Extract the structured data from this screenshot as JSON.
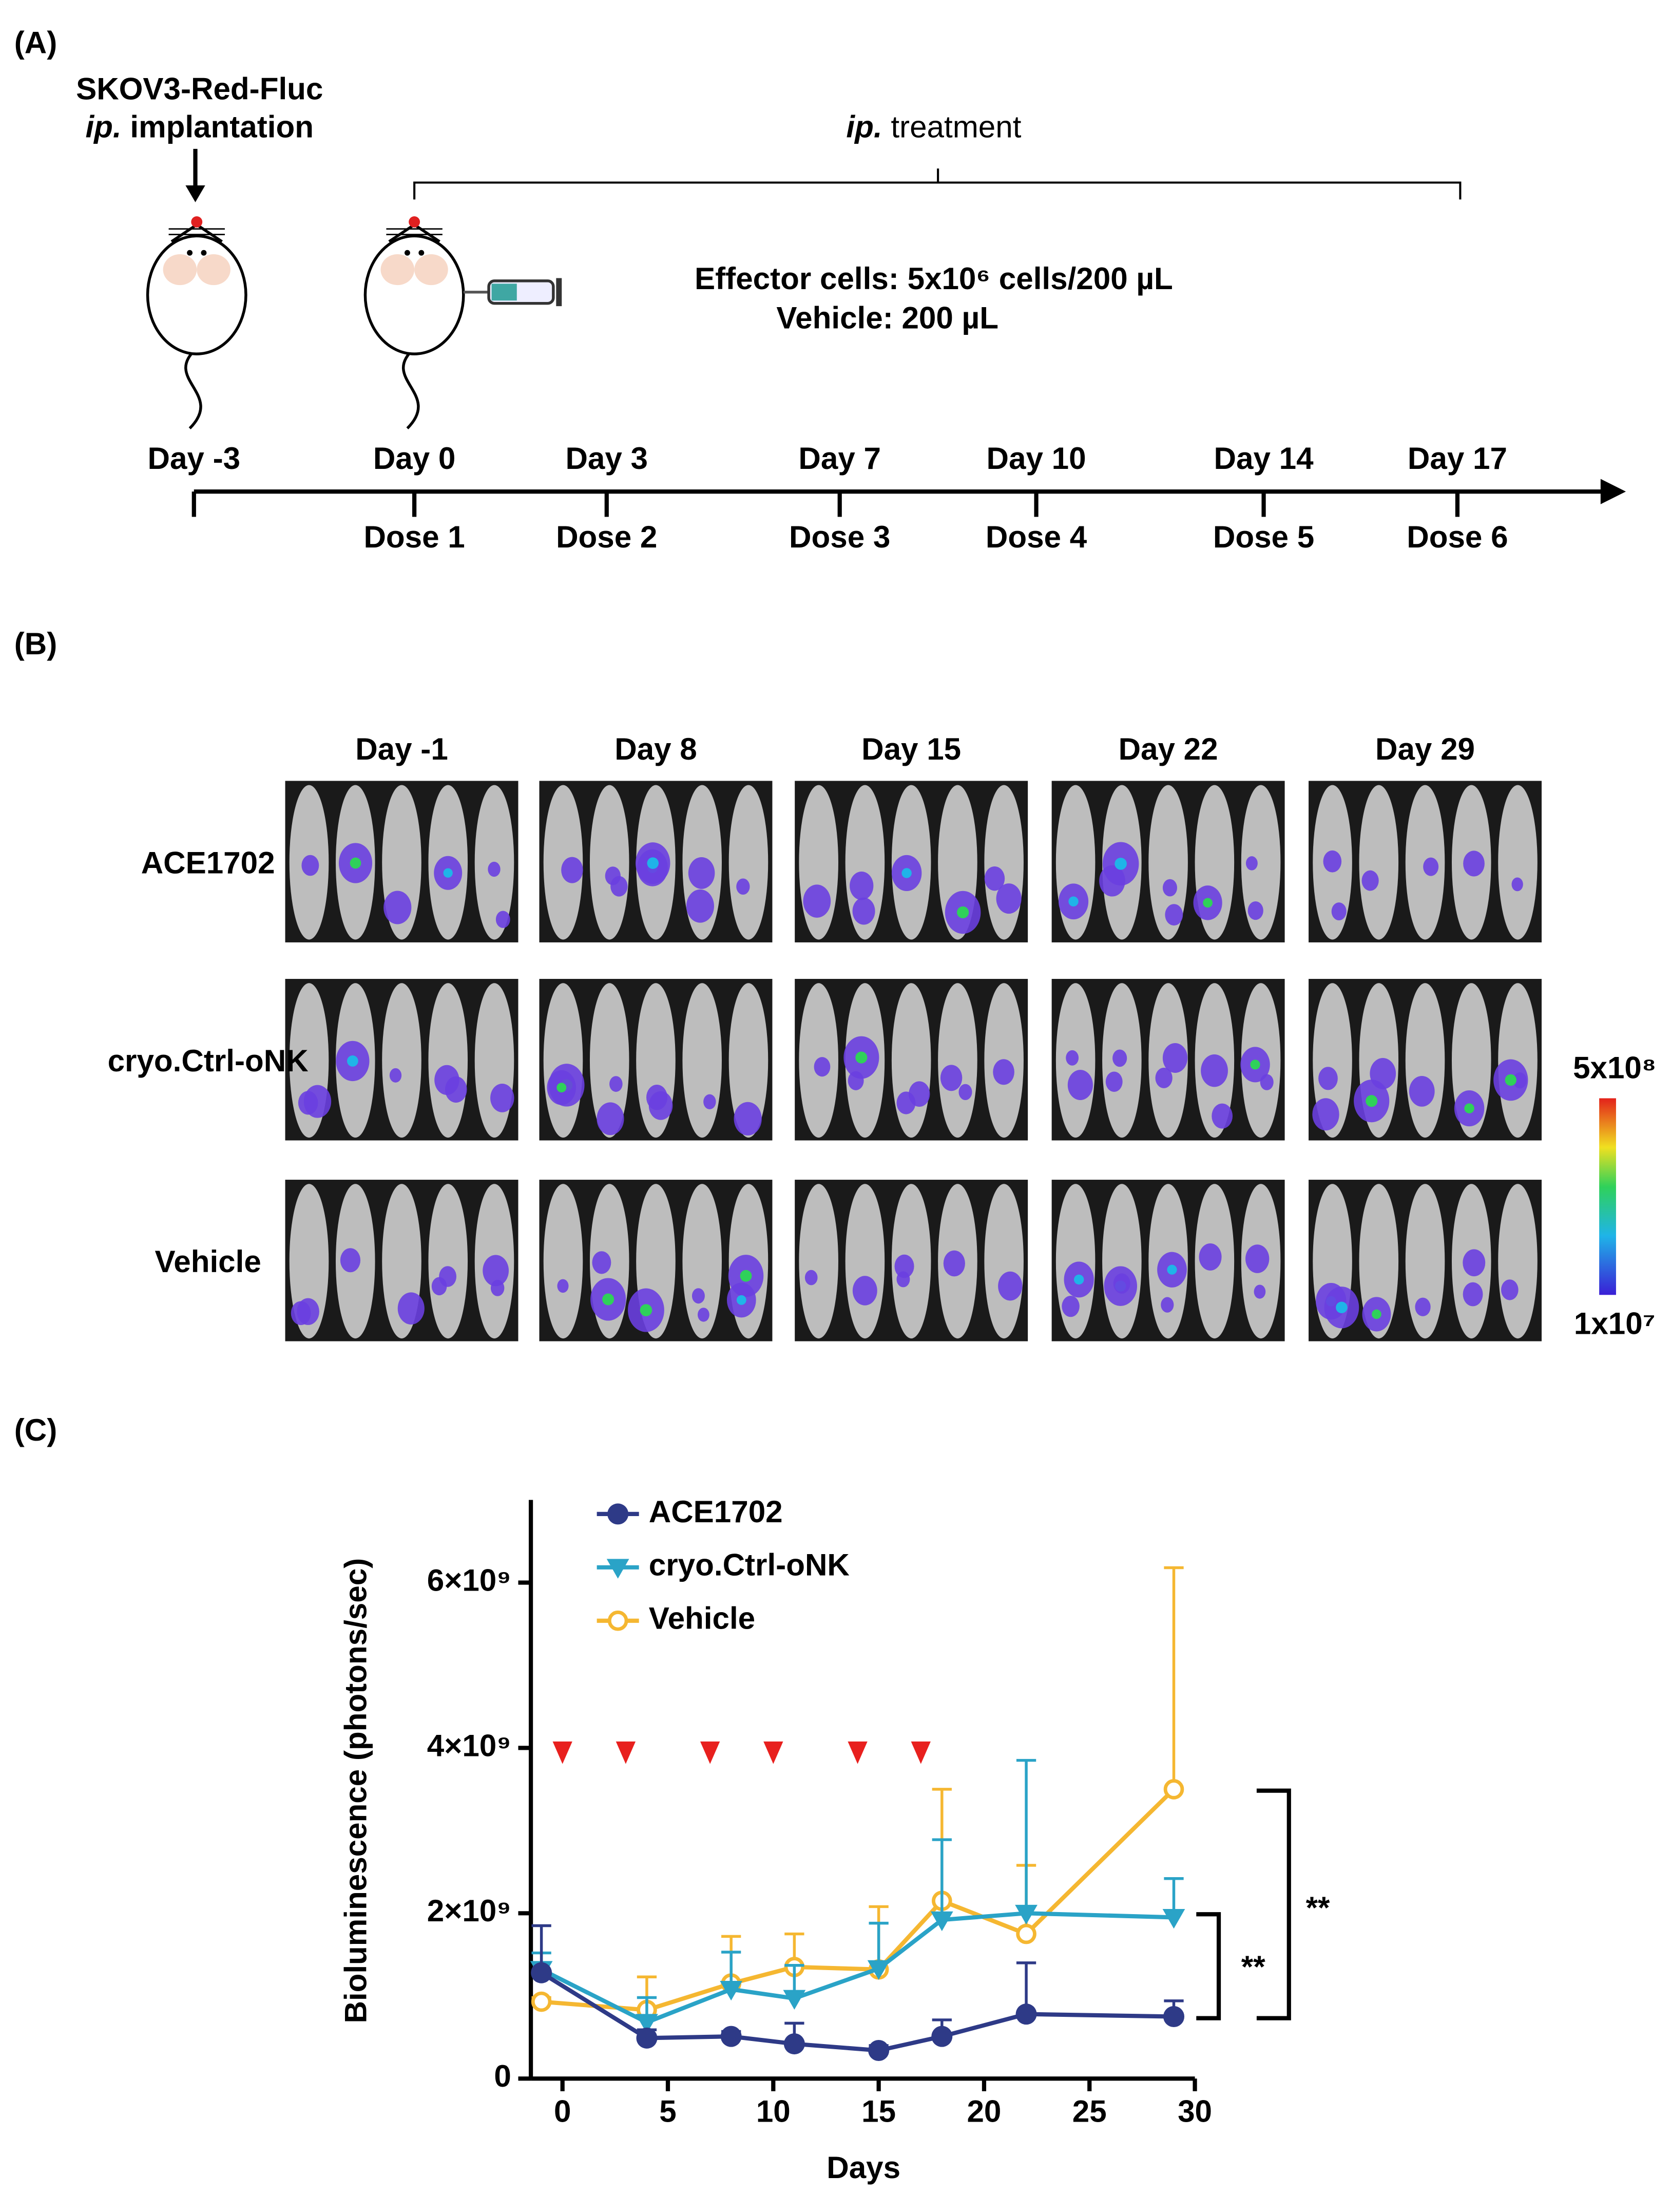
{
  "panel_a": {
    "label": "(A)",
    "implant_line1": "SKOV3-Red-Fluc",
    "implant_route": "ip.",
    "implant_word": "implantation",
    "treatment_route": "ip.",
    "treatment_word": "treatment",
    "effector": "Effector cells: 5x10⁶ cells/200 µL",
    "vehicle": "Vehicle: 200 µL",
    "days": [
      "Day -3",
      "Day 0",
      "Day 3",
      "Day 7",
      "Day 10",
      "Day 14",
      "Day 17"
    ],
    "doses": [
      "Dose 1",
      "Dose 2",
      "Dose 3",
      "Dose 4",
      "Dose 5",
      "Dose 6"
    ]
  },
  "panel_b": {
    "label": "(B)",
    "columns": [
      "Day -1",
      "Day 8",
      "Day 15",
      "Day 22",
      "Day 29"
    ],
    "rows": [
      "ACE1702",
      "cryo.Ctrl-oNK",
      "Vehicle"
    ],
    "colorbar_max": "5x10⁸",
    "colorbar_min": "1x10⁷"
  },
  "panel_c": {
    "label": "(C)"
  },
  "chart_data": {
    "type": "line",
    "xlabel": "Days",
    "ylabel": "Bioluminescence (photons/sec)",
    "x": [
      -1,
      4,
      8,
      11,
      15,
      18,
      22,
      29
    ],
    "series": [
      {
        "name": "ACE1702",
        "color": "#2e3a87",
        "marker": "circle",
        "values": [
          1280000000,
          490000000,
          510000000,
          420000000,
          340000000,
          510000000,
          780000000,
          750000000
        ],
        "errors": [
          570000000,
          100000000,
          60000000,
          250000000,
          60000000,
          200000000,
          620000000,
          190000000
        ]
      },
      {
        "name": "cryo.Ctrl-oNK",
        "color": "#2aa3c7",
        "marker": "triangle-down",
        "values": [
          1320000000,
          680000000,
          1080000000,
          970000000,
          1330000000,
          1920000000,
          2000000000,
          1950000000
        ],
        "errors": [
          200000000,
          300000000,
          450000000,
          400000000,
          550000000,
          970000000,
          1850000000,
          470000000
        ]
      },
      {
        "name": "Vehicle",
        "color": "#f5b731",
        "marker": "open-circle",
        "values": [
          930000000,
          830000000,
          1150000000,
          1350000000,
          1320000000,
          2150000000,
          1750000000,
          3500000000
        ],
        "errors": [
          50000000,
          400000000,
          570000000,
          400000000,
          760000000,
          1350000000,
          830000000,
          2680000000
        ]
      }
    ],
    "xlim": [
      -1.5,
      30
    ],
    "xticks": [
      0,
      5,
      10,
      15,
      20,
      25,
      30
    ],
    "ylim": [
      0,
      7000000000
    ],
    "yticks": [
      0,
      {
        "value": 2000000000,
        "label": "2×10⁹"
      },
      {
        "value": 4000000000,
        "label": "4×10⁹"
      },
      {
        "value": 6000000000,
        "label": "6×10⁹"
      }
    ],
    "dose_markers": {
      "x": [
        0,
        3,
        7,
        10,
        14,
        17
      ],
      "color": "#e8201e"
    },
    "significance": [
      "**",
      "**"
    ]
  }
}
